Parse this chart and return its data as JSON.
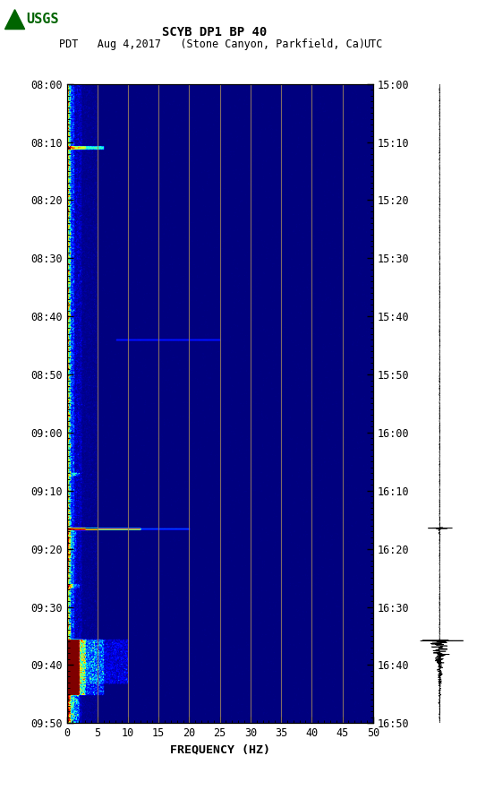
{
  "title_line1": "SCYB DP1 BP 40",
  "title_line2_left": "PDT   Aug 4,2017   (Stone Canyon, Parkfield, Ca)",
  "title_line2_right": "UTC",
  "xlabel": "FREQUENCY (HZ)",
  "freq_min": 0,
  "freq_max": 50,
  "left_yticks": [
    "08:00",
    "08:10",
    "08:20",
    "08:30",
    "08:40",
    "08:50",
    "09:00",
    "09:10",
    "09:20",
    "09:30",
    "09:40",
    "09:50"
  ],
  "right_yticks": [
    "15:00",
    "15:10",
    "15:20",
    "15:30",
    "15:40",
    "15:50",
    "16:00",
    "16:10",
    "16:20",
    "16:30",
    "16:40",
    "16:50"
  ],
  "freq_ticks": [
    0,
    5,
    10,
    15,
    20,
    25,
    30,
    35,
    40,
    45,
    50
  ],
  "vertical_lines_freq": [
    5,
    10,
    15,
    20,
    25,
    30,
    35,
    40,
    45
  ],
  "fig_bg": "#ffffff",
  "colormap": "jet",
  "usgs_green": "#006400",
  "seismogram_color": "#000000",
  "n_time": 1150,
  "n_freq": 500,
  "vmin": 0,
  "vmax": 10
}
